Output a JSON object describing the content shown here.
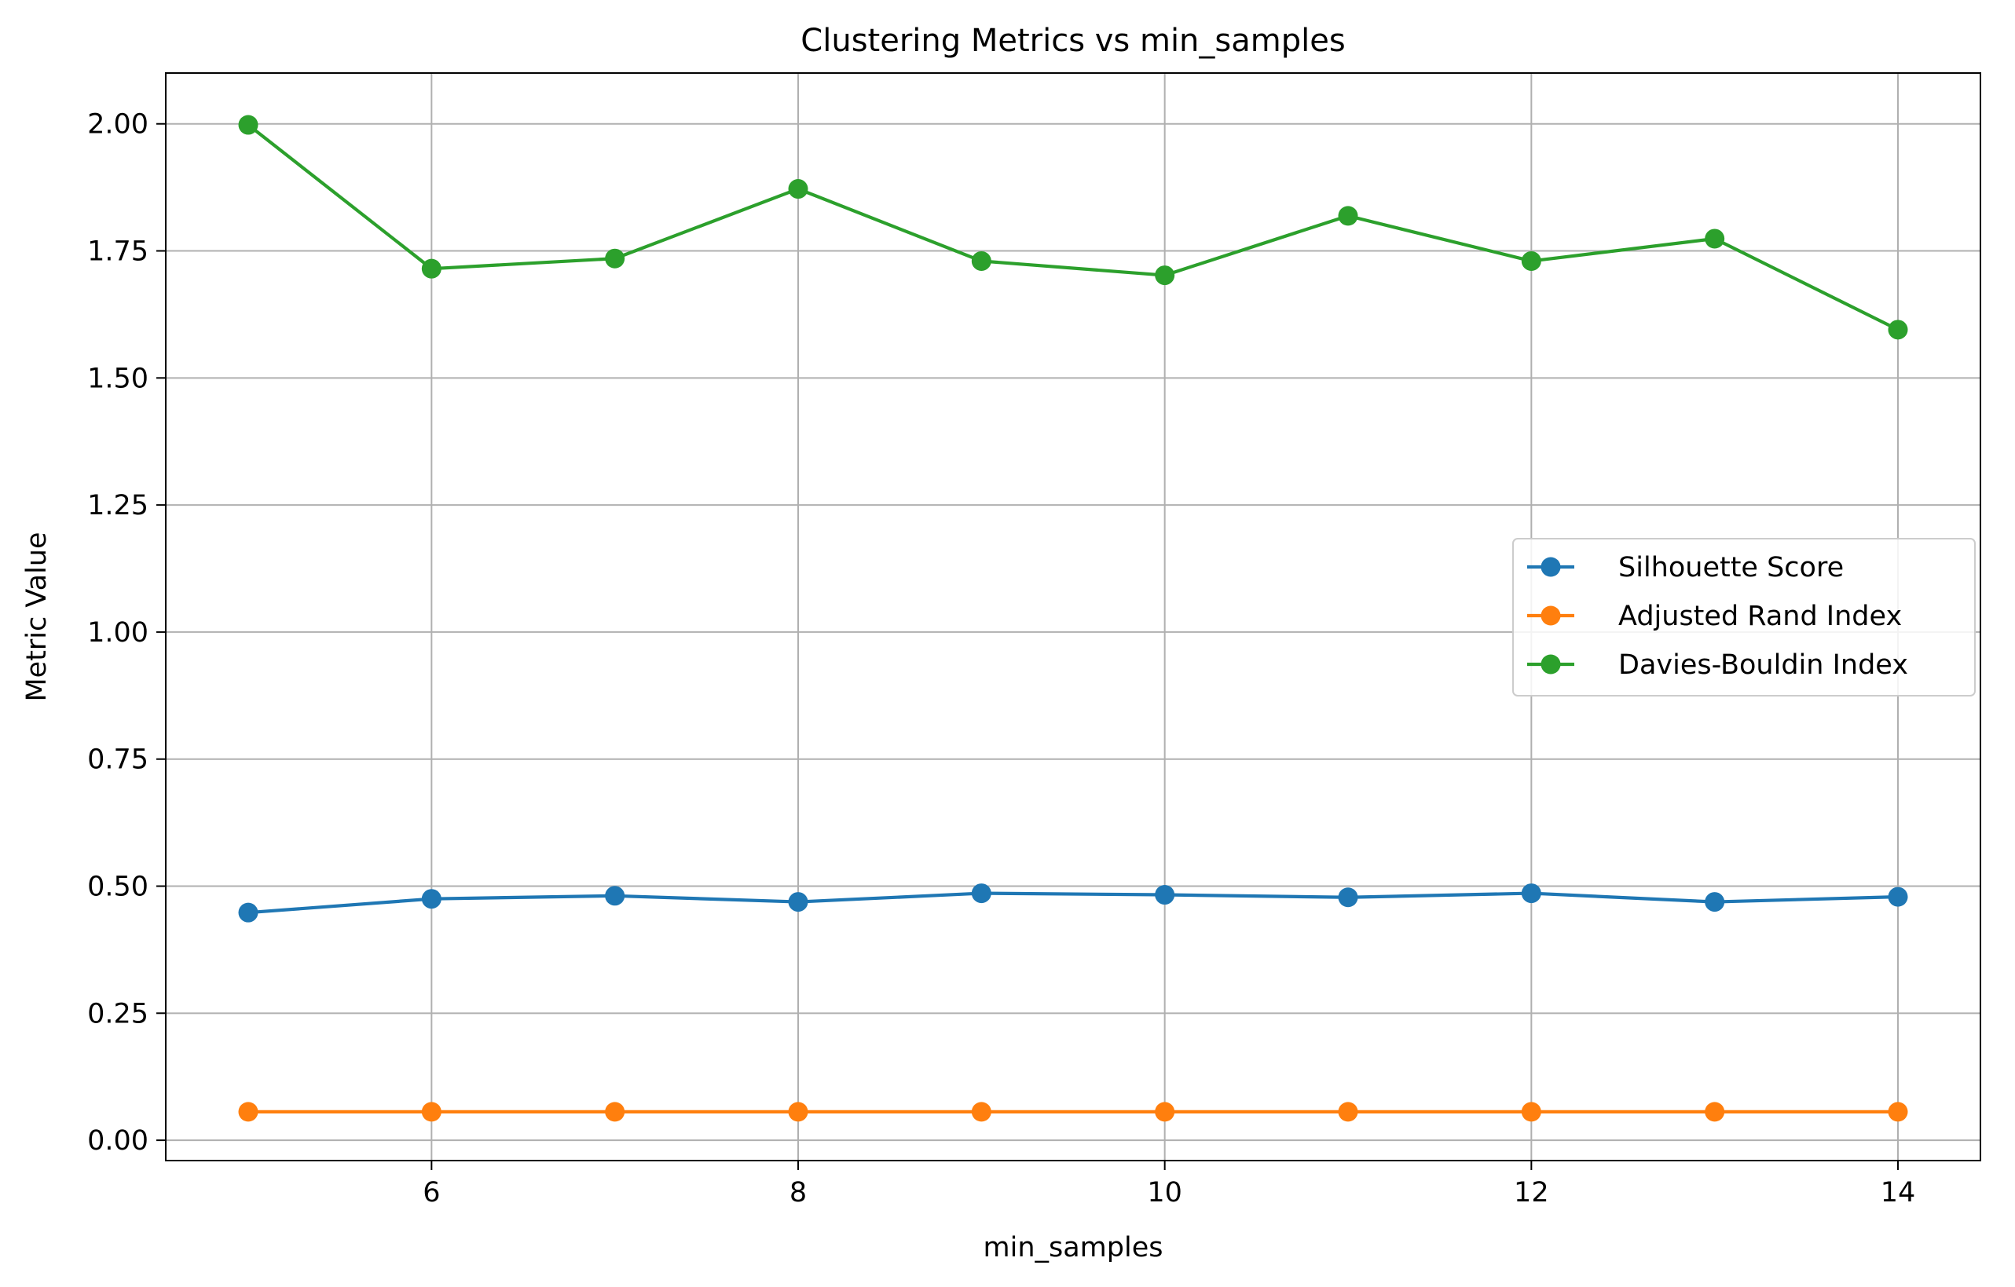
{
  "chart_data": {
    "type": "line",
    "title": "Clustering Metrics vs min_samples",
    "xlabel": "min_samples",
    "ylabel": "Metric Value",
    "x": [
      5,
      6,
      7,
      8,
      9,
      10,
      11,
      12,
      13,
      14
    ],
    "xlim": [
      4.55,
      14.45
    ],
    "ylim": [
      -0.04,
      2.1
    ],
    "x_ticks": [
      6,
      8,
      10,
      12,
      14
    ],
    "x_tick_labels": [
      "6",
      "8",
      "10",
      "12",
      "14"
    ],
    "y_ticks": [
      0.0,
      0.25,
      0.5,
      0.75,
      1.0,
      1.25,
      1.5,
      1.75,
      2.0
    ],
    "y_tick_labels": [
      "0.00",
      "0.25",
      "0.50",
      "0.75",
      "1.00",
      "1.25",
      "1.50",
      "1.75",
      "2.00"
    ],
    "grid": true,
    "legend_position": "center-right",
    "series": [
      {
        "name": "Silhouette Score",
        "color": "#1f77b4",
        "marker": "circle",
        "values": [
          0.448,
          0.475,
          0.481,
          0.469,
          0.486,
          0.483,
          0.478,
          0.486,
          0.469,
          0.479
        ]
      },
      {
        "name": "Adjusted Rand Index",
        "color": "#ff7f0e",
        "marker": "circle",
        "values": [
          0.056,
          0.056,
          0.056,
          0.056,
          0.056,
          0.056,
          0.056,
          0.056,
          0.056,
          0.056
        ]
      },
      {
        "name": "Davies-Bouldin Index",
        "color": "#2ca02c",
        "marker": "circle",
        "values": [
          1.998,
          1.715,
          1.735,
          1.872,
          1.73,
          1.702,
          1.819,
          1.73,
          1.774,
          1.595
        ]
      }
    ]
  }
}
